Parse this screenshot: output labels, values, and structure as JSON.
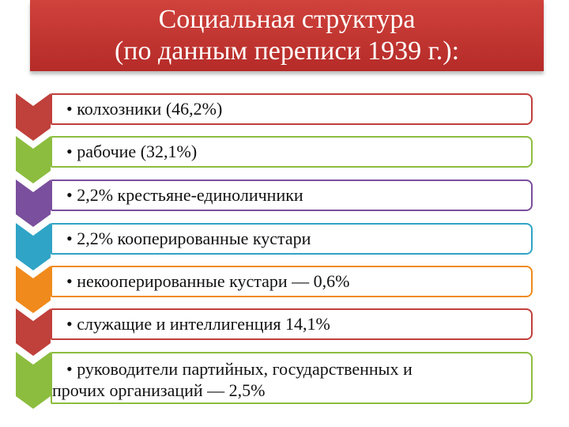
{
  "title": {
    "line1": "Социальная структура",
    "line2": "(по данным переписи 1939 г.):"
  },
  "items": [
    {
      "label": "• колхозники (46,2%)",
      "color": "#c0403b"
    },
    {
      "label": "• рабочие (32,1%)",
      "color": "#8cbd3f"
    },
    {
      "label": "• 2,2% крестьяне-единоличники",
      "color": "#7a4f9d"
    },
    {
      "label": "• 2,2%  кооперированные кустари",
      "color": "#2fa4c6"
    },
    {
      "label": "• некооперированные кустари — 0,6%",
      "color": "#f08a1c"
    },
    {
      "label": "• служащие и интеллигенция 14,1%",
      "color": "#c0403b"
    },
    {
      "label_line1": "• руководители партийных, государственных и",
      "label_line2": "прочих организаций — 2,5%",
      "color": "#8cbd3f"
    }
  ]
}
